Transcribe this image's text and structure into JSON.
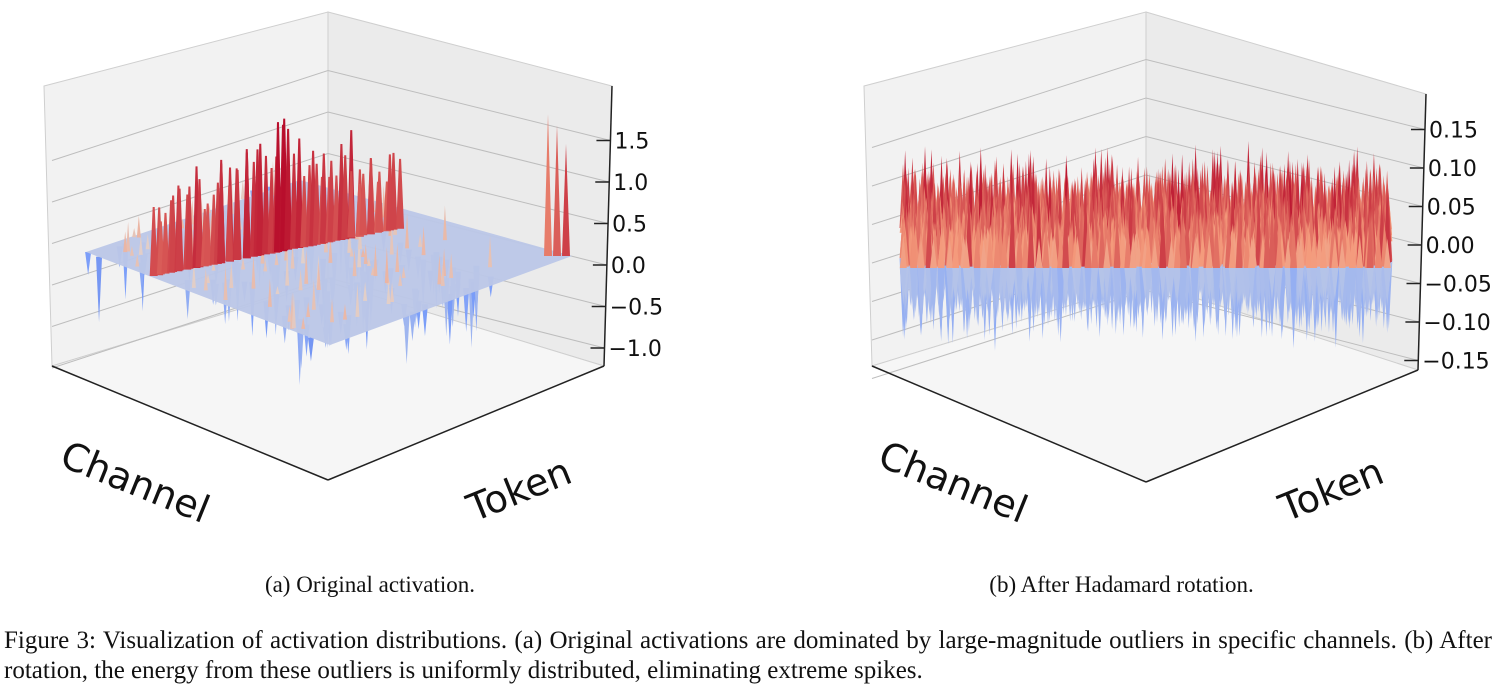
{
  "figure_caption": "Figure 3: Visualization of activation distributions. (a) Original activations are dominated by large-magnitude outliers in specific channels. (b) After rotation, the energy from these outliers is uniformly distributed, eliminating extreme spikes.",
  "chart_data": [
    {
      "type": "surface3d",
      "caption": "(a) Original activation.",
      "xlabel": "Channel",
      "ylabel": "Token",
      "zticks": [
        "−1.0",
        "−0.5",
        "0.0",
        "0.5",
        "1.0",
        "1.5"
      ],
      "zlim": [
        -1.2,
        1.9
      ],
      "colormap": "coolwarm",
      "baseline": 0.0,
      "outlier_channel_peaks": [
        0.9,
        1.05,
        1.1,
        1.3,
        1.0,
        1.4,
        1.35,
        1.6,
        1.8,
        1.5,
        1.7,
        1.65,
        1.3,
        1.2,
        1.1,
        1.4,
        0.9,
        1.0,
        0.95,
        1.2
      ],
      "edge_spike_peaks": [
        1.9,
        1.75,
        1.5
      ],
      "negative_spike_min": -1.1
    },
    {
      "type": "surface3d",
      "caption": "(b) After Hadamard rotation.",
      "xlabel": "Channel",
      "ylabel": "Token",
      "zticks": [
        "−0.15",
        "−0.10",
        "−0.05",
        "0.00",
        "0.05",
        "0.10",
        "0.15"
      ],
      "zlim": [
        -0.17,
        0.19
      ],
      "colormap": "coolwarm",
      "baseline": 0.0,
      "value_range": [
        -0.16,
        0.18
      ]
    }
  ]
}
